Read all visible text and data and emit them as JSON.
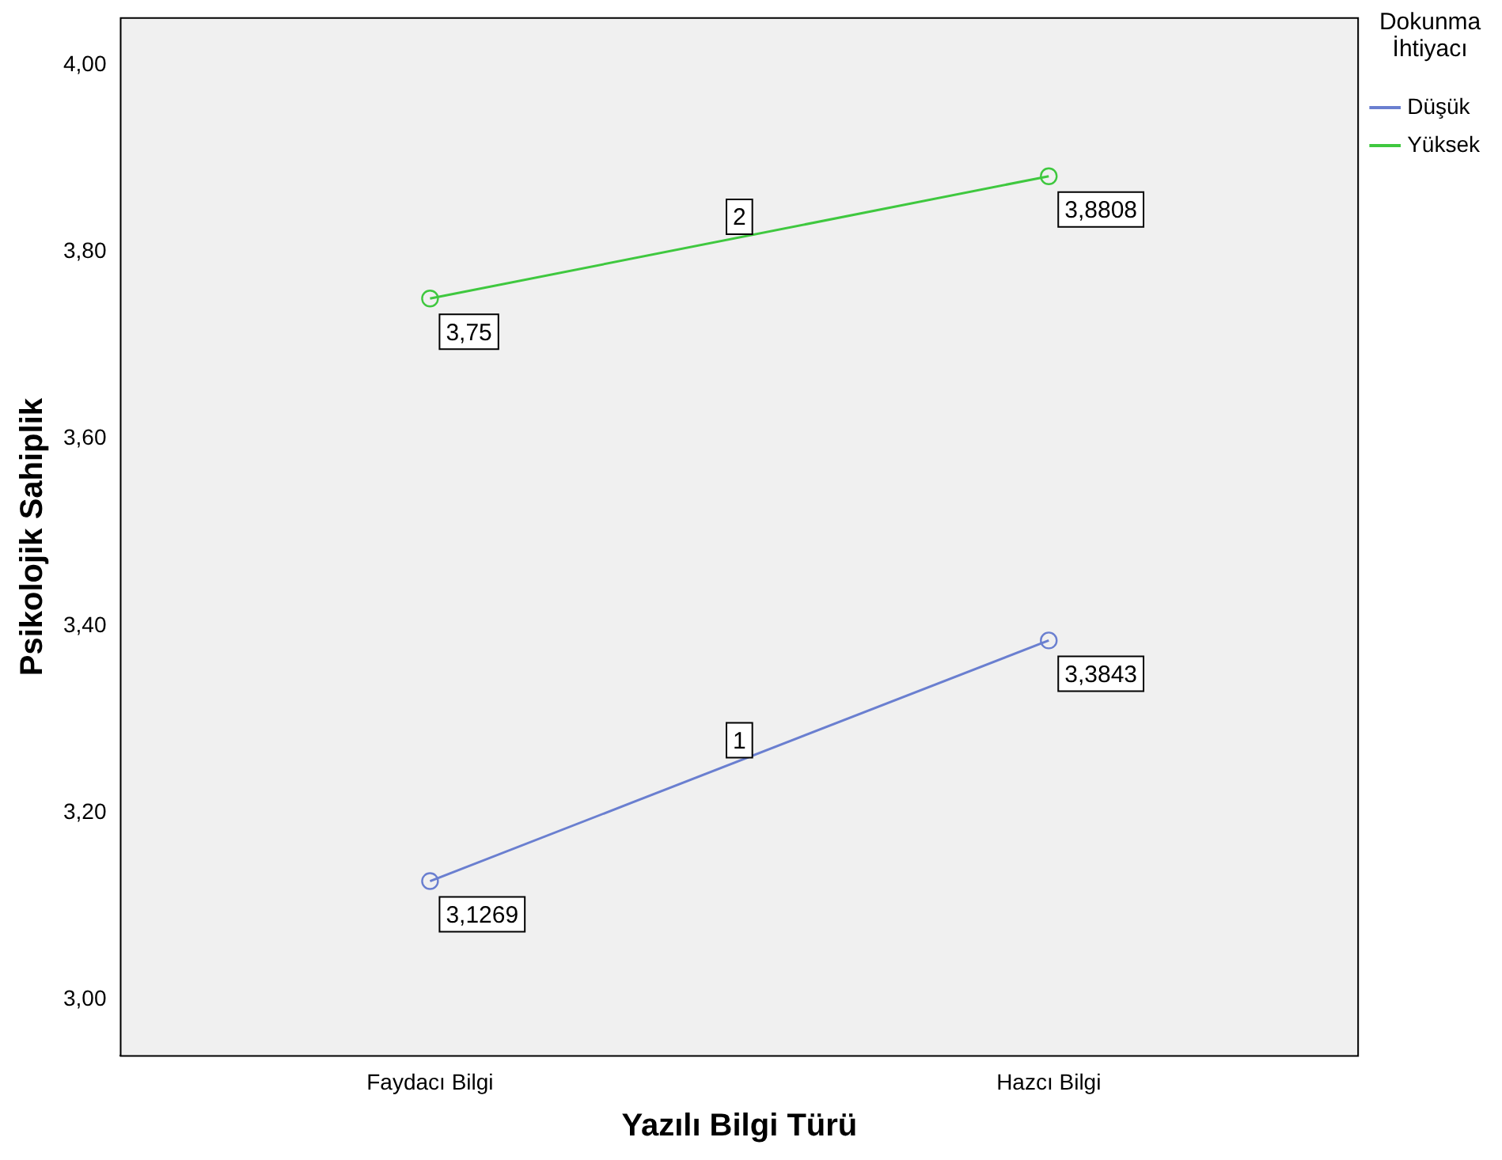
{
  "chart_data": {
    "type": "line",
    "xlabel": "Yazılı Bilgi Türü",
    "ylabel": "Psikolojik Sahiplik",
    "legend_title": "Dokunma İhtiyacı",
    "categories": [
      "Faydacı Bilgi",
      "Hazcı Bilgi"
    ],
    "series": [
      {
        "name": "Düşük",
        "color": "#6a7fd0",
        "values": [
          3.1269,
          3.3843
        ],
        "value_labels": [
          "3,1269",
          "3,3843"
        ]
      },
      {
        "name": "Yüksek",
        "color": "#3fc83f",
        "values": [
          3.75,
          3.8808
        ],
        "value_labels": [
          "3,75",
          "3,8808"
        ]
      }
    ],
    "annotations": [
      "1",
      "2"
    ],
    "ylim": [
      2.94,
      4.05
    ],
    "yticks": [
      {
        "value": 3,
        "label": "3,00"
      },
      {
        "value": 3.2,
        "label": "3,20"
      },
      {
        "value": 3.4,
        "label": "3,40"
      },
      {
        "value": 3.6,
        "label": "3,60"
      },
      {
        "value": 3.8,
        "label": "3,80"
      },
      {
        "value": 4,
        "label": "4,00"
      }
    ],
    "grid": false,
    "legend": "right",
    "marker": "circle",
    "line_style": "solid"
  }
}
